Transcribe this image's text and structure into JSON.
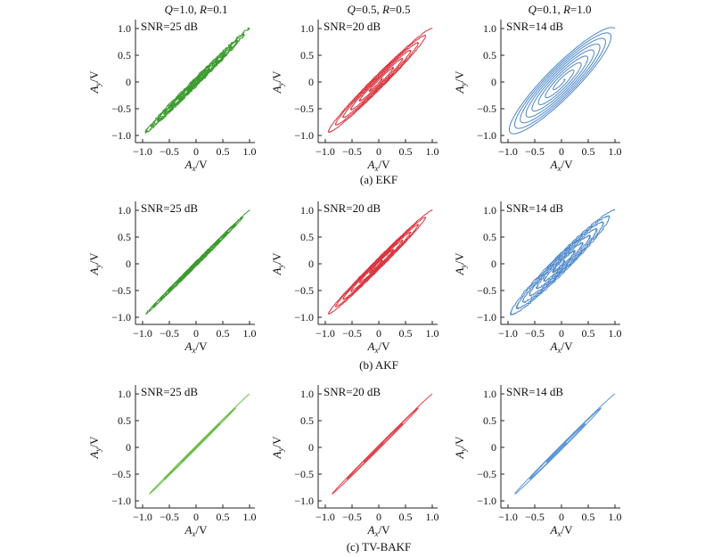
{
  "chart_data": {
    "type": "line",
    "column_titles": [
      {
        "q_sym": "Q",
        "q_val": "=1.0, ",
        "r_sym": "R",
        "r_val": "=0.1"
      },
      {
        "q_sym": "Q",
        "q_val": "=0.5, ",
        "r_sym": "R",
        "r_val": "=0.5"
      },
      {
        "q_sym": "Q",
        "q_val": "=0.1, ",
        "r_sym": "R",
        "r_val": "=1.0"
      }
    ],
    "row_captions": [
      "(a) EKF",
      "(b) AKF",
      "(c) TV-BAKF"
    ],
    "x_axis": {
      "label_main": "A",
      "label_sub": "x",
      "label_unit": "/V",
      "ticks": [
        -1.0,
        -0.5,
        0,
        0.5,
        1.0
      ],
      "tick_labels": [
        "−1.0",
        "−0.5",
        "0",
        "0.5",
        "1.0"
      ],
      "xlim": [
        -1.15,
        1.15
      ]
    },
    "y_axis": {
      "label_main": "A",
      "label_sub": "y",
      "label_unit": "/V",
      "ticks": [
        -1.0,
        -0.5,
        0,
        0.5,
        1.0
      ],
      "tick_labels": [
        "−1.0",
        "−0.5",
        "0",
        "0.5",
        "1.0"
      ],
      "ylim": [
        -1.15,
        1.15
      ]
    },
    "panels": [
      {
        "row": 0,
        "col": 0,
        "method": "EKF",
        "snr_label": "SNR=25 dB",
        "color": "#3c9a2e",
        "spread": 0.09,
        "turns": 7,
        "noise": 0.03
      },
      {
        "row": 0,
        "col": 1,
        "method": "EKF",
        "snr_label": "SNR=20 dB",
        "color": "#d9353f",
        "spread": 0.17,
        "turns": 6,
        "noise": 0.01
      },
      {
        "row": 0,
        "col": 2,
        "method": "EKF",
        "snr_label": "SNR=14 dB",
        "color": "#4a86c8",
        "spread": 0.42,
        "turns": 8,
        "noise": 0.0
      },
      {
        "row": 1,
        "col": 0,
        "method": "AKF",
        "snr_label": "SNR=25 dB",
        "color": "#3c9a2e",
        "spread": 0.05,
        "turns": 6,
        "noise": 0.01
      },
      {
        "row": 1,
        "col": 1,
        "method": "AKF",
        "snr_label": "SNR=20 dB",
        "color": "#d9353f",
        "spread": 0.12,
        "turns": 6,
        "noise": 0.01
      },
      {
        "row": 1,
        "col": 2,
        "method": "AKF",
        "snr_label": "SNR=14 dB",
        "color": "#4a86c8",
        "spread": 0.22,
        "turns": 7,
        "noise": 0.02
      },
      {
        "row": 2,
        "col": 0,
        "method": "TV-BAKF",
        "snr_label": "SNR=25 dB",
        "color": "#6cbd4a",
        "spread": 0.03,
        "turns": 3,
        "noise": 0.0
      },
      {
        "row": 2,
        "col": 1,
        "method": "TV-BAKF",
        "snr_label": "SNR=20 dB",
        "color": "#e0434f",
        "spread": 0.04,
        "turns": 3,
        "noise": 0.0
      },
      {
        "row": 2,
        "col": 2,
        "method": "TV-BAKF",
        "snr_label": "SNR=14 dB",
        "color": "#5b95d6",
        "spread": 0.05,
        "turns": 3,
        "noise": 0.0
      }
    ]
  }
}
